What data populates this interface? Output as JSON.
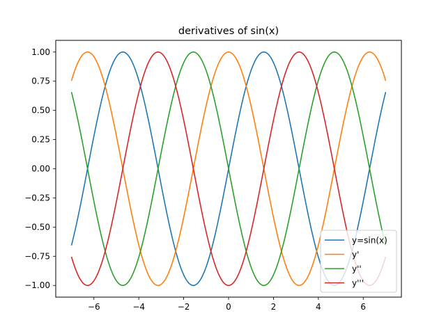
{
  "chart_data": {
    "type": "line",
    "title": "derivatives of sin(x)",
    "xlabel": "",
    "ylabel": "",
    "xlim": [
      -7.7,
      7.7
    ],
    "ylim": [
      -1.1,
      1.1
    ],
    "x_range": [
      -7,
      7
    ],
    "x_ticks": [
      -6,
      -4,
      -2,
      0,
      2,
      4,
      6
    ],
    "x_tick_labels": [
      "−6",
      "−4",
      "−2",
      "0",
      "2",
      "4",
      "6"
    ],
    "y_ticks": [
      -1.0,
      -0.75,
      -0.5,
      -0.25,
      0.0,
      0.25,
      0.5,
      0.75,
      1.0
    ],
    "y_tick_labels": [
      "−1.00",
      "−0.75",
      "−0.50",
      "−0.25",
      "0.00",
      "0.25",
      "0.50",
      "0.75",
      "1.00"
    ],
    "grid": false,
    "legend_position": "lower-right",
    "series": [
      {
        "name": "y=sin(x)",
        "expression": "sin(x)",
        "color": "#1f77b4"
      },
      {
        "name": "y'",
        "expression": "cos(x)",
        "color": "#ff7f0e"
      },
      {
        "name": "y''",
        "expression": "-sin(x)",
        "color": "#2ca02c"
      },
      {
        "name": "y'''",
        "expression": "-cos(x)",
        "color": "#d62728"
      }
    ]
  }
}
